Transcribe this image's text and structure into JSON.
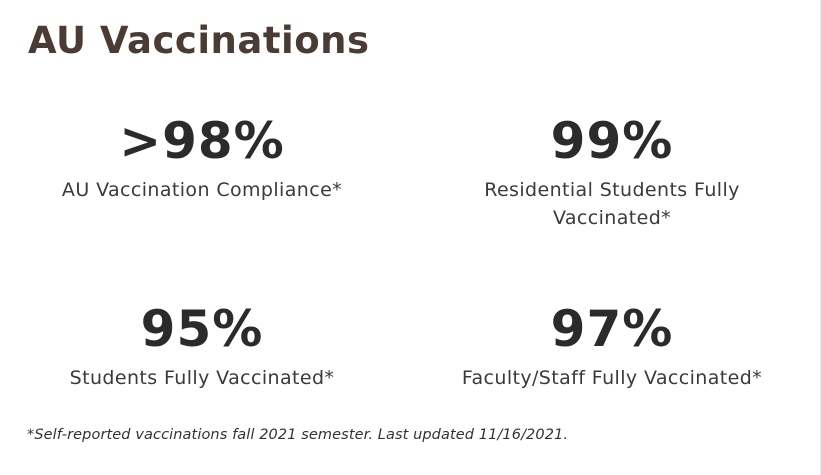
{
  "title": "AU Vaccinations",
  "stats": [
    {
      "value": ">98%",
      "label": "AU Vaccination Compliance*"
    },
    {
      "value": "99%",
      "label": "Residential Students Fully Vaccinated*"
    },
    {
      "value": "95%",
      "label": "Students Fully Vaccinated*"
    },
    {
      "value": "97%",
      "label": "Faculty/Staff Fully Vaccinated*"
    }
  ],
  "footnote": "*Self-reported vaccinations fall 2021 semester. Last updated 11/16/2021.",
  "colors": {
    "title": "#4a3c34",
    "value": "#2b2b2b",
    "label": "#3a3a3a"
  }
}
